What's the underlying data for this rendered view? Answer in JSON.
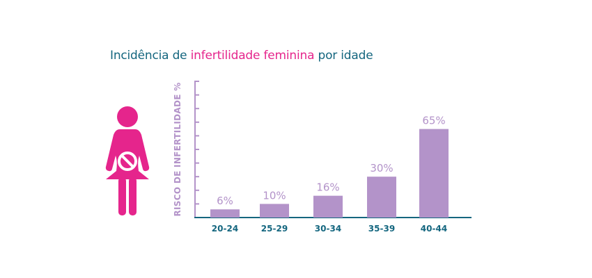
{
  "title": {
    "part1": "Incidência de ",
    "part2": "infertilidade feminina",
    "part3": " por idade"
  },
  "icon": {
    "name": "pregnant-woman-no-icon",
    "color": "#e5258c"
  },
  "colors": {
    "bar": "#b393c9",
    "axis": "#14667f",
    "ytick": "#b393c9",
    "tick_label": "#14667f",
    "title_blue": "#14667f",
    "title_pink": "#e5258c"
  },
  "chart_data": {
    "type": "bar",
    "categories": [
      "20-24",
      "25-29",
      "30-34",
      "35-39",
      "40-44"
    ],
    "values": [
      6,
      10,
      16,
      30,
      65
    ],
    "value_labels": [
      "6%",
      "10%",
      "16%",
      "30%",
      "65%"
    ],
    "ylabel": "RISCO DE INFERTILIDADE %",
    "xlabel": "",
    "ylim": [
      0,
      100
    ],
    "grid": false,
    "legend": "none"
  }
}
